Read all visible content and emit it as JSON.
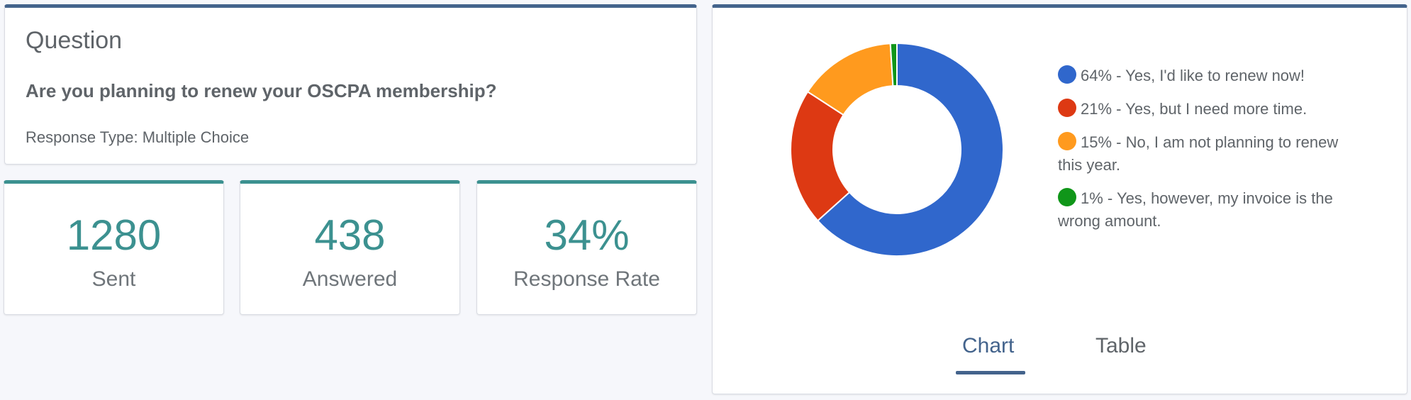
{
  "question": {
    "heading": "Question",
    "text": "Are you planning to renew your OSCPA membership?",
    "response_type": "Response Type: Multiple Choice"
  },
  "stats": {
    "sent": {
      "value": "1280",
      "label": "Sent"
    },
    "answered": {
      "value": "438",
      "label": "Answered"
    },
    "rate": {
      "value": "34%",
      "label": "Response Rate"
    }
  },
  "legend": [
    {
      "text": "64% - Yes, I'd like to renew now!",
      "color": "#3067cc"
    },
    {
      "text": "21% - Yes, but I need more time.",
      "color": "#dd3913"
    },
    {
      "text": "15% - No, I am not planning to renew this year.",
      "color": "#ff9a1e"
    },
    {
      "text": "1% - Yes, however, my invoice is the wrong amount.",
      "color": "#109619"
    }
  ],
  "tabs": {
    "chart": "Chart",
    "table": "Table"
  },
  "chart_data": {
    "type": "pie",
    "donut": true,
    "categories": [
      "Yes, I'd like to renew now!",
      "Yes, but I need more time.",
      "No, I am not planning to renew this year.",
      "Yes, however, my invoice is the wrong amount."
    ],
    "values": [
      64,
      21,
      15,
      1
    ],
    "colors": [
      "#3067cc",
      "#dd3913",
      "#ff9a1e",
      "#109619"
    ],
    "legend_position": "right"
  }
}
